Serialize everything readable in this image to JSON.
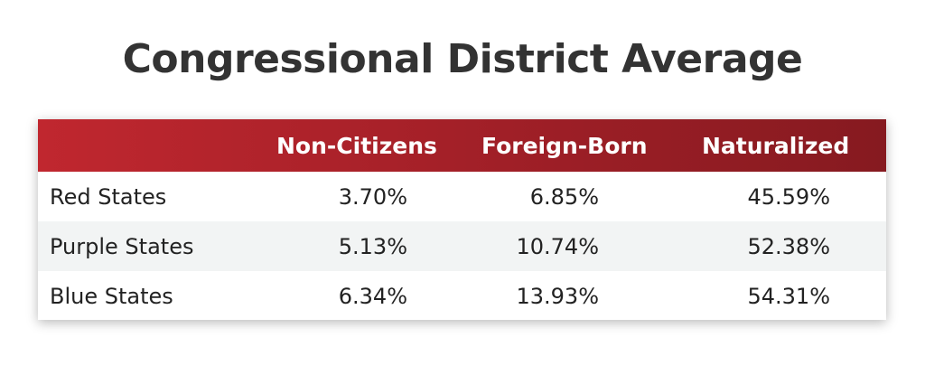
{
  "chart_data": {
    "type": "table",
    "title": "Congressional District Average",
    "columns": [
      "",
      "Non-Citizens",
      "Foreign-Born",
      "Naturalized"
    ],
    "rows": [
      {
        "label": "Red States",
        "values": [
          "3.70%",
          "6.85%",
          "45.59%"
        ]
      },
      {
        "label": "Purple States",
        "values": [
          "5.13%",
          "10.74%",
          "52.38%"
        ]
      },
      {
        "label": "Blue States",
        "values": [
          "6.34%",
          "13.93%",
          "54.31%"
        ]
      }
    ]
  },
  "colors": {
    "header_start": "#c0272f",
    "header_end": "#861a20",
    "alt_row": "#f2f4f4",
    "title_text": "#333333"
  }
}
